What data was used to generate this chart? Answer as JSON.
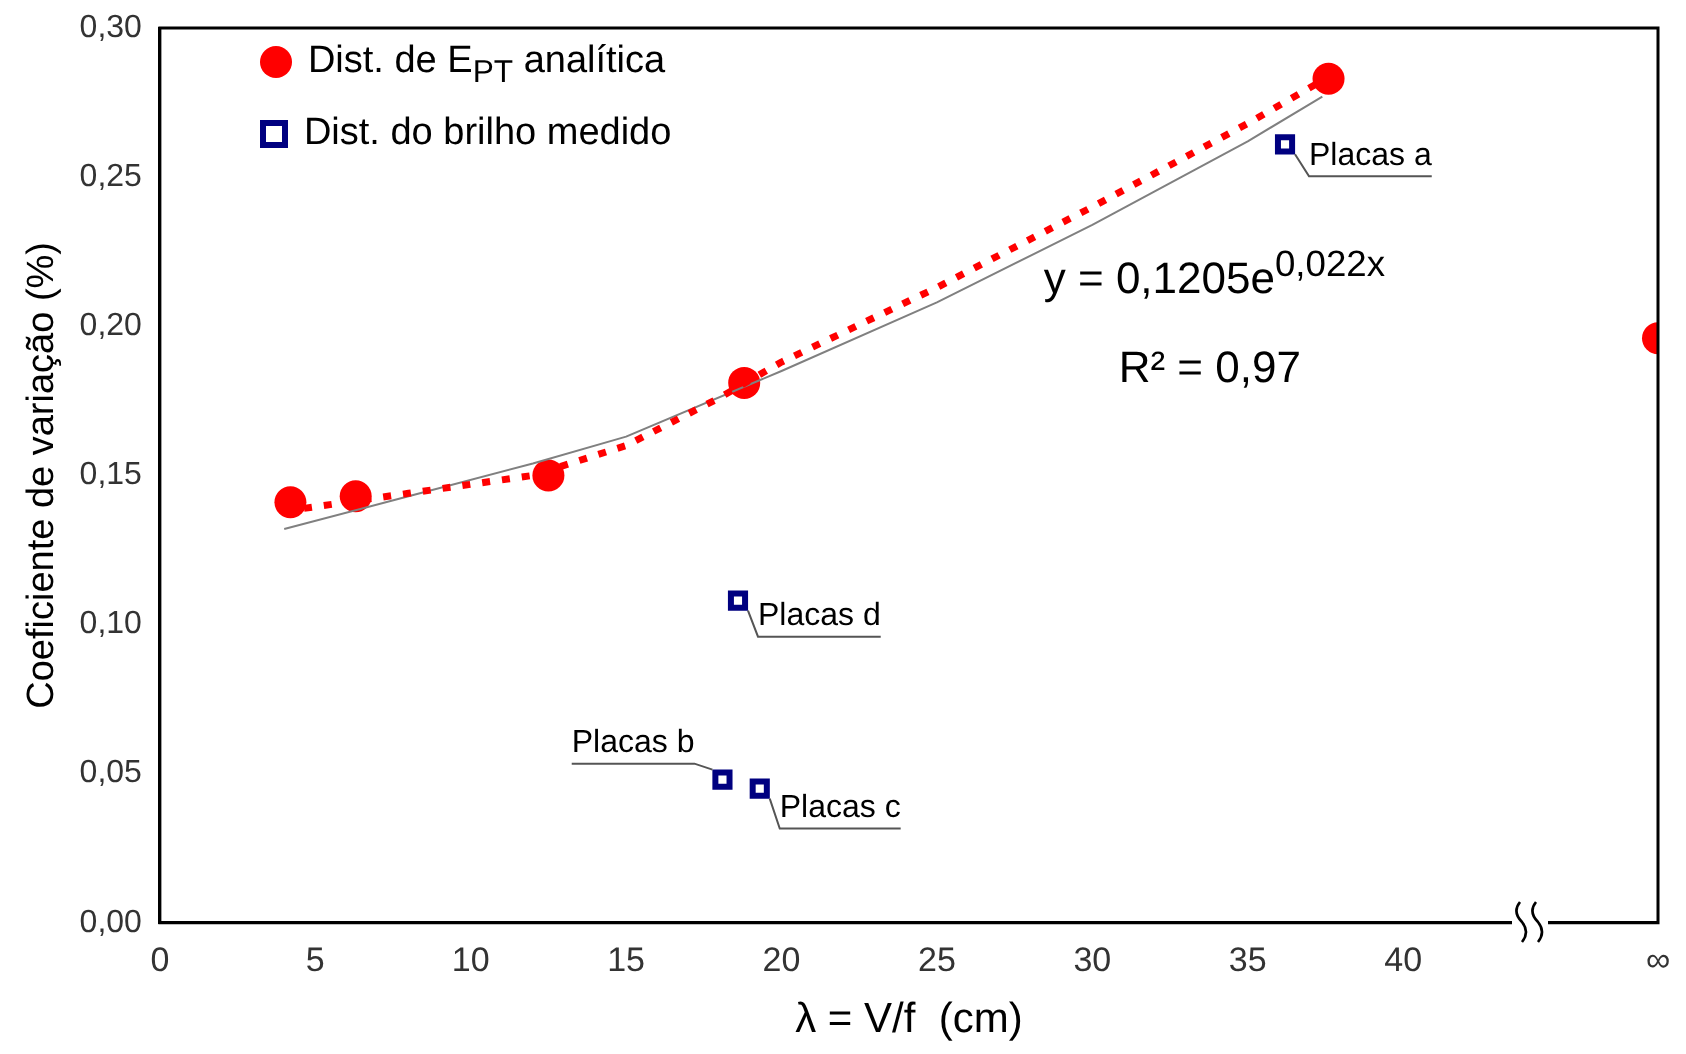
{
  "chart_data": {
    "type": "scatter",
    "xlabel": "λ = V/f  (cm)",
    "ylabel": "Coeficiente de variação (%)",
    "xlim": [
      0,
      48.2
    ],
    "xticks": [
      0,
      5,
      10,
      15,
      20,
      25,
      30,
      35,
      40,
      {
        "value": 48.2,
        "label": "∞"
      }
    ],
    "ylim": [
      0,
      0.3
    ],
    "yticks": [
      {
        "value": 0,
        "label": "0,00"
      },
      {
        "value": 0.05,
        "label": "0,05"
      },
      {
        "value": 0.1,
        "label": "0,10"
      },
      {
        "value": 0.15,
        "label": "0,15"
      },
      {
        "value": 0.2,
        "label": "0,20"
      },
      {
        "value": 0.25,
        "label": "0,25"
      },
      {
        "value": 0.3,
        "label": "0,30"
      }
    ],
    "grid": false,
    "legend": "top left",
    "series": [
      {
        "type": "line",
        "color": "#ff0000",
        "line_style": "dotted",
        "marker": "none",
        "x": [
          4,
          8,
          12,
          15,
          18,
          20,
          25,
          30,
          35,
          37.5
        ],
        "values": [
          0.138,
          0.144,
          0.15,
          0.16,
          0.176,
          0.188,
          0.213,
          0.24,
          0.268,
          0.283
        ]
      },
      {
        "type": "line",
        "color": "#808080",
        "line_style": "solid",
        "marker": "none",
        "x": [
          4,
          8,
          12,
          15,
          20,
          25,
          30,
          35,
          37.4
        ],
        "values": [
          0.132,
          0.143,
          0.154,
          0.163,
          0.185,
          0.208,
          0.234,
          0.262,
          0.277
        ]
      },
      {
        "name": "Dist. de E$_{PT}$ analítica",
        "color": "#ff0000",
        "marker": "circle",
        "x": [
          4.2,
          6.3,
          12.5,
          18.8,
          37.6,
          48.2
        ],
        "values": [
          0.141,
          0.143,
          0.15,
          0.181,
          0.283,
          0.196
        ]
      },
      {
        "name": "Dist. do brilho medido",
        "color": "#000080",
        "marker": "square",
        "x": [
          36.2,
          18.6,
          18.1,
          19.3
        ],
        "values": [
          0.261,
          0.108,
          0.048,
          0.045
        ]
      }
    ],
    "annotations": [
      {
        "text": "Placas a",
        "x": 36.2,
        "y": 0.261
      },
      {
        "text": "Placas d",
        "x": 18.6,
        "y": 0.108
      },
      {
        "text": "Placas b",
        "x": 18.1,
        "y": 0.048
      },
      {
        "text": "Placas c",
        "x": 19.3,
        "y": 0.045
      },
      "y = 0,1205e$^{0,022x}$",
      "R² = 0,97"
    ]
  }
}
